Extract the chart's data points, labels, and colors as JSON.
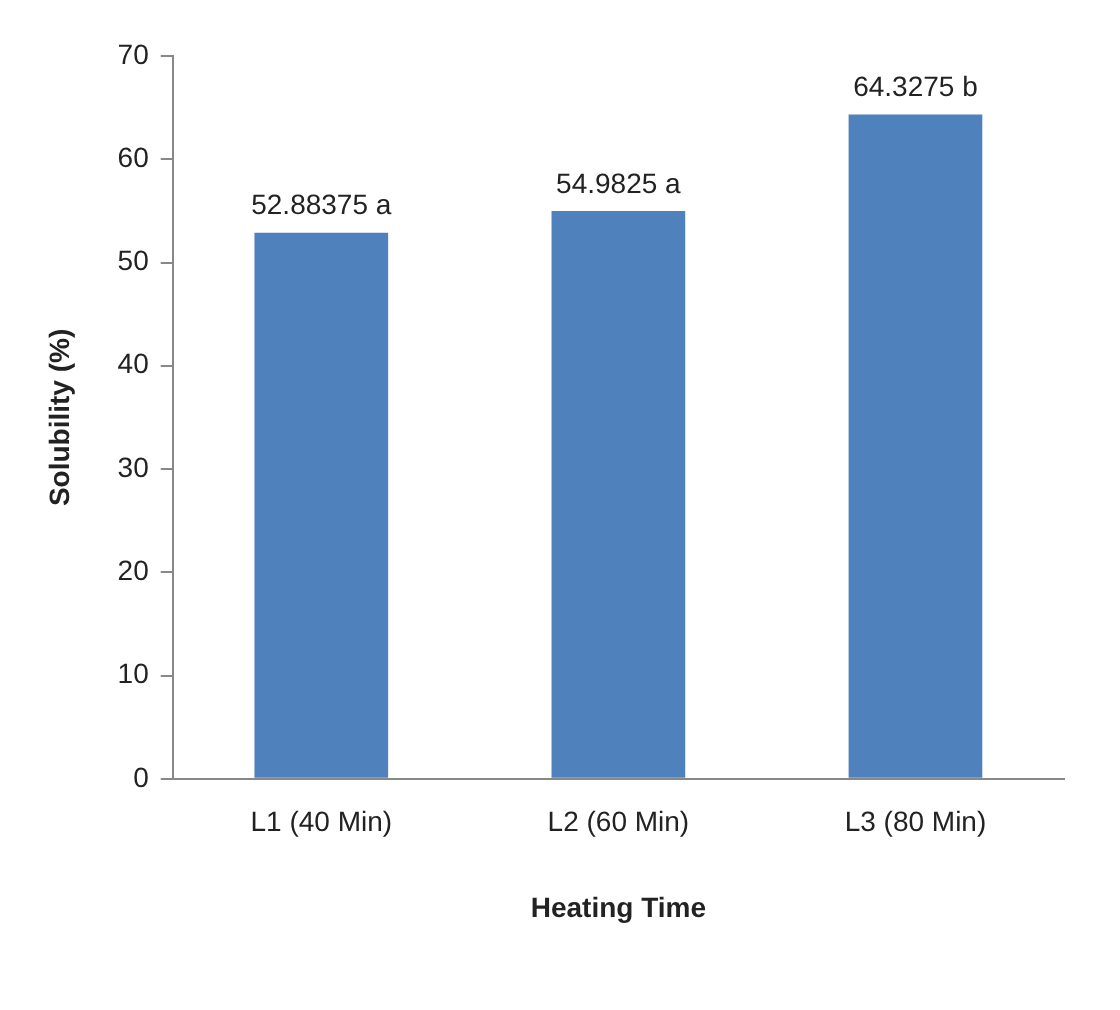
{
  "chart_data": {
    "type": "bar",
    "xlabel": "Heating Time",
    "ylabel": "Solubility (%)",
    "categories": [
      "L1 (40 Min)",
      "L2 (60 Min)",
      "L3 (80 Min)"
    ],
    "values": [
      52.88375,
      54.9825,
      64.3275
    ],
    "color": "#4f81bd",
    "value_labels": [
      "52.88375 a",
      "54.9825 a",
      "64.3275 b"
    ],
    "ylim": [
      0,
      70
    ],
    "yticks": [
      0,
      10,
      20,
      30,
      40,
      50,
      60,
      70
    ],
    "grid": false,
    "legend": false
  }
}
